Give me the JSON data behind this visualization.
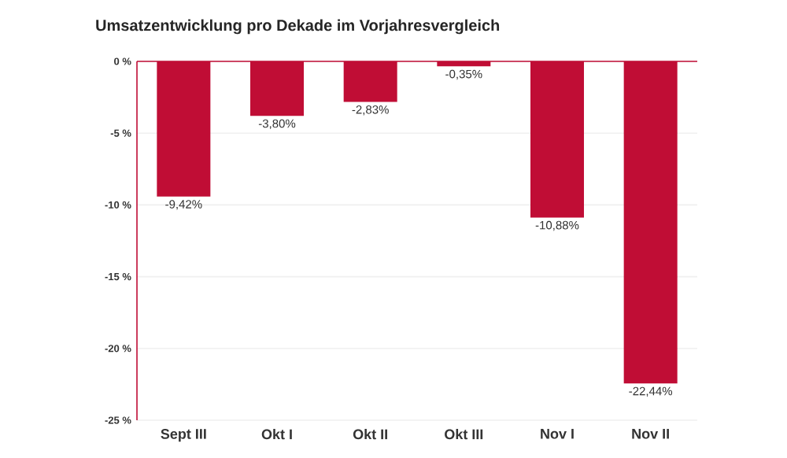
{
  "chart_data": {
    "type": "bar",
    "title": "Umsatzentwicklung pro Dekade im Vorjahresvergleich",
    "categories": [
      "Sept III",
      "Okt I",
      "Okt II",
      "Okt III",
      "Nov I",
      "Nov II"
    ],
    "values": [
      -9.42,
      -3.8,
      -2.83,
      -0.35,
      -10.88,
      -22.44
    ],
    "value_labels": [
      "-9,42%",
      "-3,80%",
      "-2,83%",
      "-0,35%",
      "-10,88%",
      "-22,44%"
    ],
    "color": "#c00d35",
    "ylim": [
      -25,
      0
    ],
    "yticks": [
      {
        "value": 0,
        "label": "0 %"
      },
      {
        "value": -5,
        "label": "-5 %"
      },
      {
        "value": -10,
        "label": "-10 %"
      },
      {
        "value": -15,
        "label": "-15 %"
      },
      {
        "value": -20,
        "label": "-20 %"
      },
      {
        "value": -25,
        "label": "-25 %"
      }
    ],
    "grid": "y"
  }
}
